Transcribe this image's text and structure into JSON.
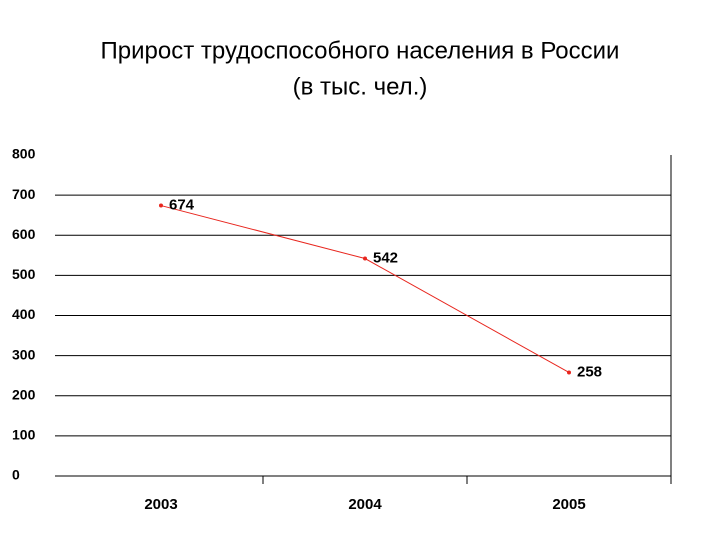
{
  "chart_data": {
    "type": "line",
    "title": "Прирост трудоспособного населения в России",
    "subtitle": "(в тыс. чел.)",
    "categories": [
      "2003",
      "2004",
      "2005"
    ],
    "series": [
      {
        "name": "Прирост",
        "color": "#e8261e",
        "values": [
          674,
          542,
          258
        ]
      }
    ],
    "ylim": [
      0,
      800
    ],
    "yticks": [
      0,
      100,
      200,
      300,
      400,
      500,
      600,
      700,
      800
    ],
    "grid": true
  }
}
